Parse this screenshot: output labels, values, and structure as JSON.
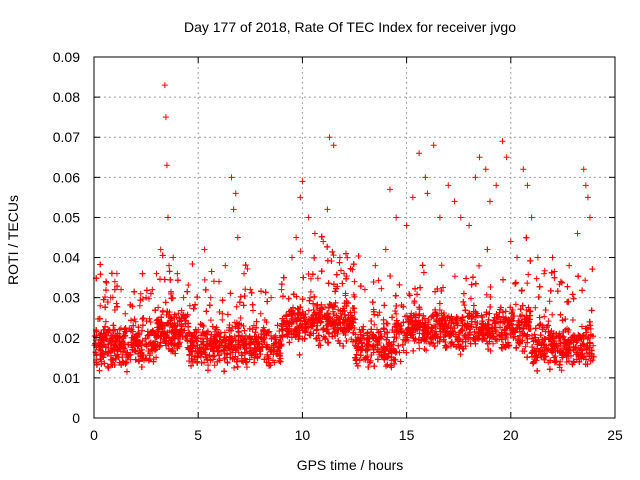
{
  "chart_data": {
    "type": "scatter",
    "title": "Day 177 of 2018, Rate Of TEC Index for receiver jvgo",
    "xlabel": "GPS time / hours",
    "ylabel": "ROTI / TECUs",
    "xlim": [
      0,
      25
    ],
    "ylim": [
      0,
      0.09
    ],
    "xticks": [
      0,
      5,
      10,
      15,
      20,
      25
    ],
    "xtick_labels": [
      "0",
      "5",
      "10",
      "15",
      "20",
      "25"
    ],
    "yticks": [
      0,
      0.01,
      0.02,
      0.03,
      0.04,
      0.05,
      0.06,
      0.07,
      0.08,
      0.09
    ],
    "ytick_labels": [
      "0",
      "0.01",
      "0.02",
      "0.03",
      "0.04",
      "0.05",
      "0.06",
      "0.07",
      "0.08",
      "0.09"
    ],
    "grid": true,
    "marker": "+",
    "color": "#ff0000",
    "series": [
      {
        "name": "ROTI",
        "x": [
          0.1,
          0.3,
          0.5,
          0.8,
          1.0,
          1.1,
          1.3,
          1.5,
          1.8,
          2.0,
          2.2,
          2.5,
          2.8,
          3.0,
          3.2,
          3.4,
          3.45,
          3.5,
          3.55,
          3.6,
          3.8,
          4.0,
          4.3,
          4.6,
          5.0,
          5.3,
          5.6,
          6.0,
          6.3,
          6.6,
          6.7,
          6.8,
          6.9,
          7.2,
          7.5,
          8.0,
          8.5,
          9.0,
          9.5,
          9.7,
          9.9,
          10.0,
          10.3,
          10.6,
          11.0,
          11.2,
          11.3,
          11.5,
          11.8,
          12.0,
          12.5,
          13.0,
          13.5,
          14.0,
          14.2,
          14.5,
          15.0,
          15.3,
          15.6,
          15.9,
          16.0,
          16.3,
          16.6,
          17.0,
          17.3,
          17.6,
          18.0,
          18.3,
          18.5,
          18.8,
          19.0,
          19.3,
          19.6,
          19.8,
          20.0,
          20.3,
          20.6,
          20.8,
          21.0,
          21.3,
          21.6,
          22.0,
          22.4,
          22.8,
          23.2,
          23.5,
          23.6,
          23.7,
          23.8
        ],
        "y": [
          0.018,
          0.028,
          0.022,
          0.03,
          0.034,
          0.036,
          0.032,
          0.026,
          0.02,
          0.024,
          0.028,
          0.03,
          0.032,
          0.036,
          0.042,
          0.083,
          0.075,
          0.063,
          0.05,
          0.038,
          0.04,
          0.036,
          0.03,
          0.028,
          0.022,
          0.042,
          0.03,
          0.034,
          0.038,
          0.06,
          0.052,
          0.056,
          0.045,
          0.036,
          0.032,
          0.026,
          0.03,
          0.032,
          0.04,
          0.045,
          0.055,
          0.059,
          0.05,
          0.046,
          0.044,
          0.052,
          0.07,
          0.068,
          0.04,
          0.036,
          0.034,
          0.032,
          0.038,
          0.042,
          0.057,
          0.05,
          0.048,
          0.055,
          0.066,
          0.06,
          0.056,
          0.068,
          0.05,
          0.058,
          0.054,
          0.05,
          0.048,
          0.06,
          0.065,
          0.062,
          0.054,
          0.058,
          0.069,
          0.065,
          0.044,
          0.04,
          0.062,
          0.058,
          0.05,
          0.04,
          0.036,
          0.04,
          0.034,
          0.038,
          0.046,
          0.062,
          0.058,
          0.055,
          0.05
        ]
      }
    ]
  }
}
